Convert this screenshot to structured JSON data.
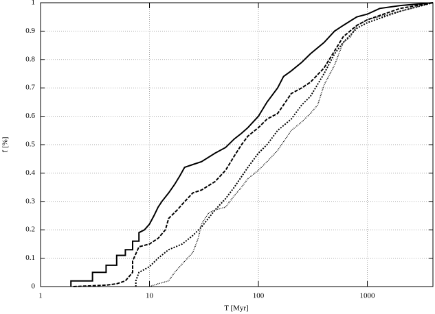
{
  "chart_data": {
    "type": "line",
    "xlabel": "T [Myr]",
    "ylabel": "f [%]",
    "xscale": "log",
    "xlim": [
      1,
      4000
    ],
    "xticks": [
      1,
      10,
      100,
      1000
    ],
    "ylim": [
      0,
      1
    ],
    "yticks": [
      0,
      0.1,
      0.2,
      0.3,
      0.4,
      0.5,
      0.6,
      0.7,
      0.8,
      0.9,
      1
    ],
    "grid": true,
    "series": [
      {
        "color": "#000000",
        "dash": "solid",
        "width": 2,
        "x": [
          1.9,
          1.9,
          3,
          3,
          4,
          4,
          5,
          5,
          6,
          6,
          7,
          7,
          8,
          8,
          9,
          10,
          11,
          12,
          13,
          15,
          17,
          19,
          21,
          25,
          30,
          40,
          50,
          60,
          70,
          80,
          100,
          120,
          150,
          170,
          200,
          250,
          300,
          400,
          500,
          600,
          800,
          1000,
          1300,
          2000,
          4000
        ],
        "values": [
          0,
          0.02,
          0.02,
          0.05,
          0.05,
          0.075,
          0.075,
          0.11,
          0.11,
          0.13,
          0.13,
          0.16,
          0.16,
          0.19,
          0.2,
          0.22,
          0.25,
          0.28,
          0.3,
          0.33,
          0.36,
          0.39,
          0.42,
          0.43,
          0.44,
          0.47,
          0.49,
          0.52,
          0.54,
          0.56,
          0.6,
          0.65,
          0.7,
          0.74,
          0.76,
          0.79,
          0.82,
          0.86,
          0.9,
          0.92,
          0.95,
          0.96,
          0.98,
          0.99,
          1
        ]
      },
      {
        "color": "#000000",
        "dash": "dashed",
        "width": 2,
        "x": [
          2,
          4,
          5,
          6,
          7,
          7,
          8,
          10,
          12,
          14,
          15,
          18,
          20,
          25,
          30,
          40,
          50,
          60,
          70,
          80,
          100,
          120,
          150,
          170,
          200,
          250,
          300,
          400,
          500,
          600,
          800,
          1000,
          2000,
          4000
        ],
        "values": [
          0,
          0.005,
          0.01,
          0.02,
          0.05,
          0.09,
          0.14,
          0.15,
          0.17,
          0.2,
          0.24,
          0.27,
          0.29,
          0.33,
          0.34,
          0.37,
          0.41,
          0.46,
          0.5,
          0.53,
          0.56,
          0.59,
          0.61,
          0.64,
          0.68,
          0.7,
          0.72,
          0.77,
          0.83,
          0.88,
          0.92,
          0.94,
          0.98,
          1
        ]
      },
      {
        "color": "#000000",
        "dash": "dotted",
        "width": 2,
        "x": [
          7.5,
          7.5,
          8,
          10,
          12,
          15,
          20,
          25,
          30,
          40,
          50,
          60,
          80,
          100,
          120,
          150,
          200,
          250,
          300,
          400,
          500,
          600,
          800,
          1000,
          2000,
          4000
        ],
        "values": [
          0,
          0.02,
          0.05,
          0.07,
          0.1,
          0.13,
          0.15,
          0.18,
          0.21,
          0.27,
          0.31,
          0.35,
          0.42,
          0.47,
          0.5,
          0.55,
          0.59,
          0.64,
          0.67,
          0.75,
          0.82,
          0.86,
          0.91,
          0.93,
          0.97,
          1
        ]
      },
      {
        "color": "#000000",
        "dash": "fine-dotted",
        "width": 1.5,
        "x": [
          10,
          12,
          15,
          17,
          20,
          25,
          28,
          30,
          35,
          40,
          50,
          60,
          70,
          80,
          100,
          120,
          150,
          170,
          200,
          250,
          300,
          350,
          400,
          500,
          600,
          700,
          800,
          1000,
          2000,
          4000
        ],
        "values": [
          0,
          0.01,
          0.02,
          0.05,
          0.08,
          0.12,
          0.17,
          0.22,
          0.26,
          0.27,
          0.28,
          0.32,
          0.35,
          0.38,
          0.41,
          0.44,
          0.48,
          0.51,
          0.55,
          0.58,
          0.61,
          0.64,
          0.71,
          0.78,
          0.86,
          0.88,
          0.92,
          0.94,
          0.97,
          1
        ]
      }
    ]
  }
}
